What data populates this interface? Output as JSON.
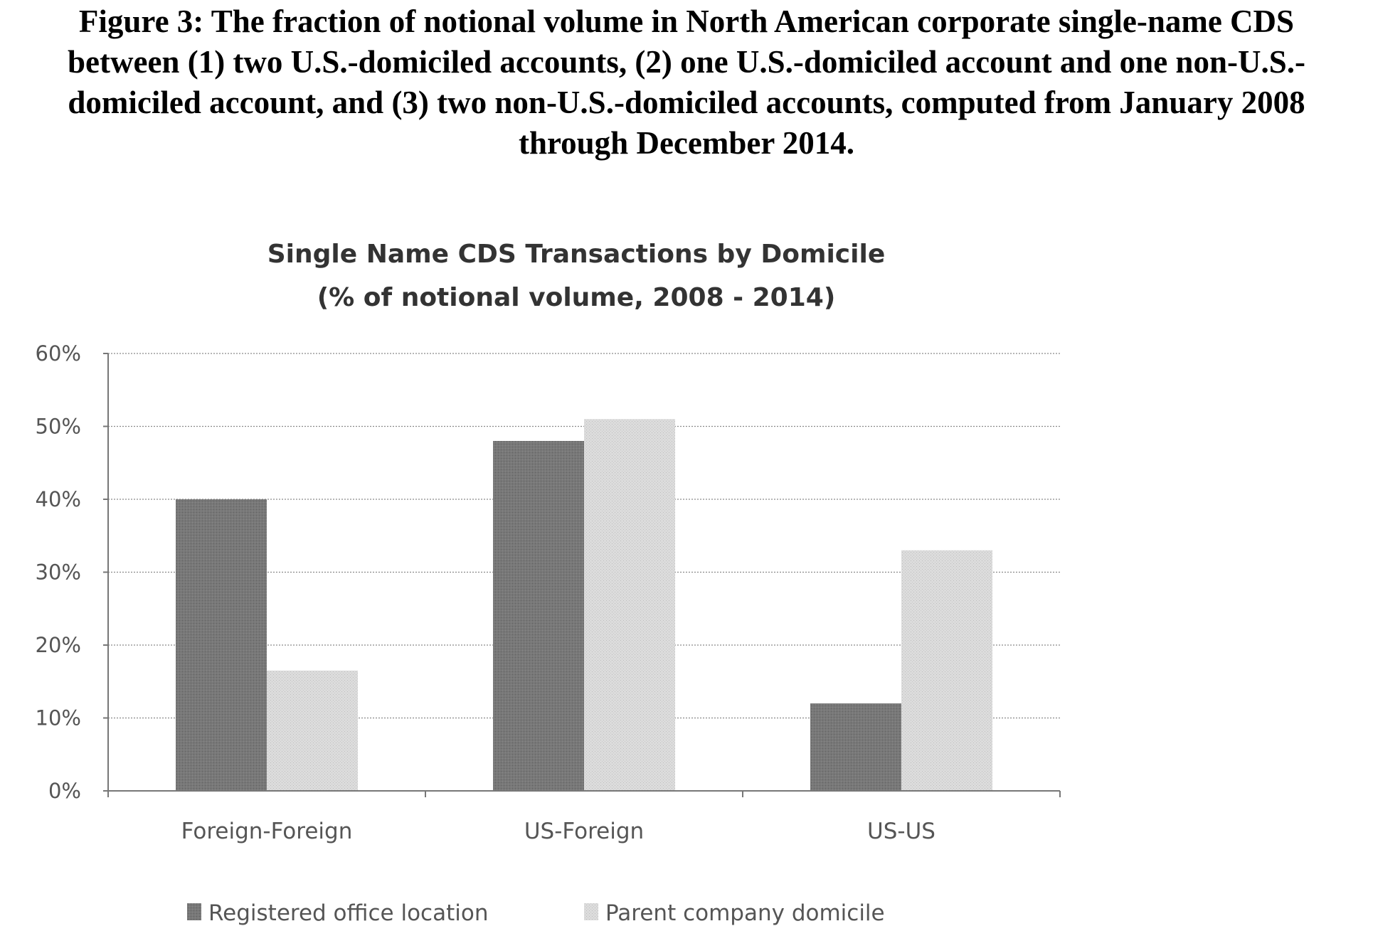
{
  "figure_caption": {
    "lines": [
      "Figure 3: The fraction of notional volume in North American corporate single-name CDS",
      "between (1) two U.S.-domiciled accounts, (2) one U.S.-domiciled account and one non-U.S.-",
      "domiciled account, and (3) two non-U.S.-domiciled accounts, computed from January 2008",
      "through December 2014."
    ]
  },
  "chart_data": {
    "type": "bar",
    "title": "Single Name CDS Transactions by Domicile",
    "subtitle": "(% of notional volume, 2008 - 2014)",
    "xlabel": "",
    "ylabel": "",
    "categories": [
      "Foreign-Foreign",
      "US-Foreign",
      "US-US"
    ],
    "series": [
      {
        "name": "Registered office location",
        "values": [
          40,
          48,
          12
        ],
        "color": "#7a7a7a"
      },
      {
        "name": "Parent company domicile",
        "values": [
          16.5,
          51,
          33
        ],
        "color": "#d6d6d6"
      }
    ],
    "ylim": [
      0,
      60
    ],
    "yticks": [
      {
        "value": 0,
        "label": "0%"
      },
      {
        "value": 10,
        "label": "10%"
      },
      {
        "value": 20,
        "label": "20%"
      },
      {
        "value": 30,
        "label": "30%"
      },
      {
        "value": 40,
        "label": "40%"
      },
      {
        "value": 50,
        "label": "50%"
      },
      {
        "value": 60,
        "label": "60%"
      }
    ],
    "grid": true,
    "legend_position": "bottom"
  }
}
